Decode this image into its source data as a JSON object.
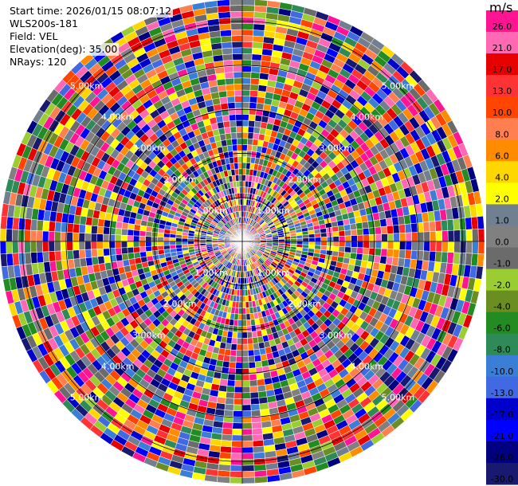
{
  "info": {
    "start_time": "Start time: 2026/01/15 08:07:12",
    "instrument": "WLS200s-181",
    "field": "Field: VEL",
    "elevation": "Elevation(deg): 35.00",
    "nrays": "NRays: 120"
  },
  "chart_data": {
    "type": "heatmap",
    "projection": "polar-ppi",
    "field": "VEL",
    "unit": "m/s",
    "n_rays": 120,
    "elevation_deg": 35.0,
    "range_rings": [
      {
        "label": "1.00km",
        "range_km": 1
      },
      {
        "label": "2.00km",
        "range_km": 2
      },
      {
        "label": "3.00km",
        "range_km": 3
      },
      {
        "label": "4.00km",
        "range_km": 4
      },
      {
        "label": "5.00km",
        "range_km": 5
      }
    ],
    "max_range_km": 5.5,
    "colorbar": {
      "title": "m/s",
      "ticks": [
        "26.0",
        "21.0",
        "17.0",
        "13.0",
        "10.0",
        "8.0",
        "6.0",
        "4.0",
        "2.0",
        "1.0",
        "0.0",
        "-1.0",
        "-2.0",
        "-4.0",
        "-6.0",
        "-8.0",
        "-10.0",
        "-13.0",
        "-17.0",
        "-21.0",
        "-26.0",
        "-30.0"
      ],
      "colors": [
        "#ff1493",
        "#ff69b4",
        "#e60000",
        "#ff3333",
        "#ff4500",
        "#ff7f50",
        "#ff8c00",
        "#ffd700",
        "#ffff00",
        "#708090",
        "#808080",
        "#6b6b6b",
        "#9acd32",
        "#6b8e23",
        "#228b22",
        "#2e8b57",
        "#3a7fd5",
        "#4169e1",
        "#0000cd",
        "#0000ff",
        "#000080",
        "#191970"
      ]
    }
  }
}
